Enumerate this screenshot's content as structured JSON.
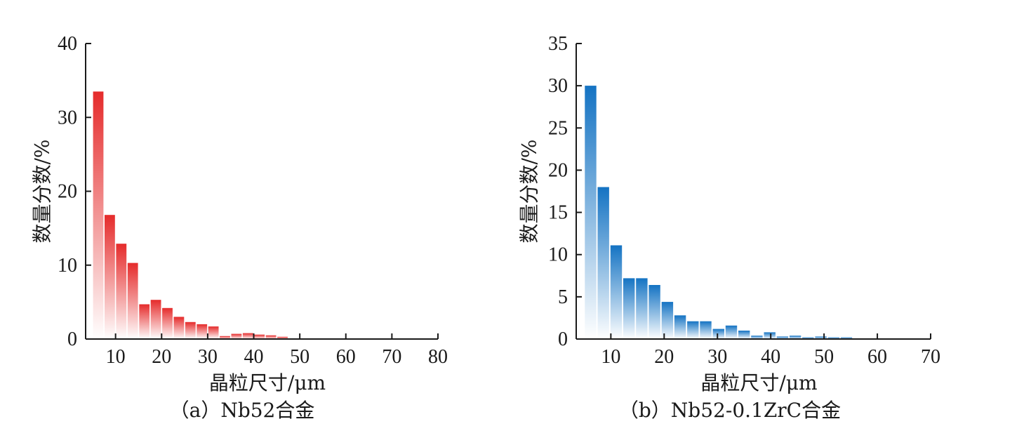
{
  "chart_data": [
    {
      "type": "bar",
      "ylabel": "数量分数/%",
      "xlabel": "晶粒尺寸/μm",
      "caption": "（a）Nb52合金",
      "xlim": [
        3.5,
        80
      ],
      "ylim": [
        0,
        40
      ],
      "xticks": [
        10,
        20,
        30,
        40,
        50,
        60,
        70,
        80
      ],
      "yticks": [
        0,
        10,
        20,
        30,
        40
      ],
      "bin_width": 2.5,
      "color_top": "#e52b2b",
      "color_bottom": "#ffffff",
      "x": [
        6.25,
        8.75,
        11.25,
        13.75,
        16.25,
        18.75,
        21.25,
        23.75,
        26.25,
        28.75,
        31.25,
        33.75,
        36.25,
        38.75,
        41.25,
        43.75,
        46.25,
        48.75,
        51.25,
        53.75
      ],
      "values": [
        33.5,
        16.8,
        12.9,
        10.3,
        4.7,
        5.3,
        4.2,
        3.0,
        2.3,
        2.0,
        1.7,
        0.4,
        0.7,
        0.8,
        0.6,
        0.5,
        0.3,
        0.0,
        0.0,
        0.0
      ]
    },
    {
      "type": "bar",
      "ylabel": "数量分数/%",
      "xlabel": "晶粒尺寸/μm",
      "caption": "（b）Nb52-0.1ZrC合金",
      "xlim": [
        3.5,
        70
      ],
      "ylim": [
        0,
        35
      ],
      "xticks": [
        10,
        20,
        30,
        40,
        50,
        60,
        70
      ],
      "yticks": [
        0,
        5,
        10,
        15,
        20,
        25,
        30,
        35
      ],
      "bin_width": 2.4,
      "color_top": "#1473c3",
      "color_bottom": "#ffffff",
      "x": [
        6.2,
        8.6,
        11.0,
        13.4,
        15.8,
        18.2,
        20.6,
        23.0,
        25.4,
        27.8,
        30.2,
        32.6,
        35.0,
        37.4,
        39.8,
        42.2,
        44.6,
        47.0,
        49.4,
        51.8,
        54.2
      ],
      "values": [
        30.0,
        18.0,
        11.1,
        7.2,
        7.2,
        6.4,
        4.4,
        2.8,
        2.1,
        2.1,
        1.2,
        1.6,
        1.0,
        0.4,
        0.8,
        0.3,
        0.4,
        0.2,
        0.3,
        0.2,
        0.2
      ]
    }
  ]
}
